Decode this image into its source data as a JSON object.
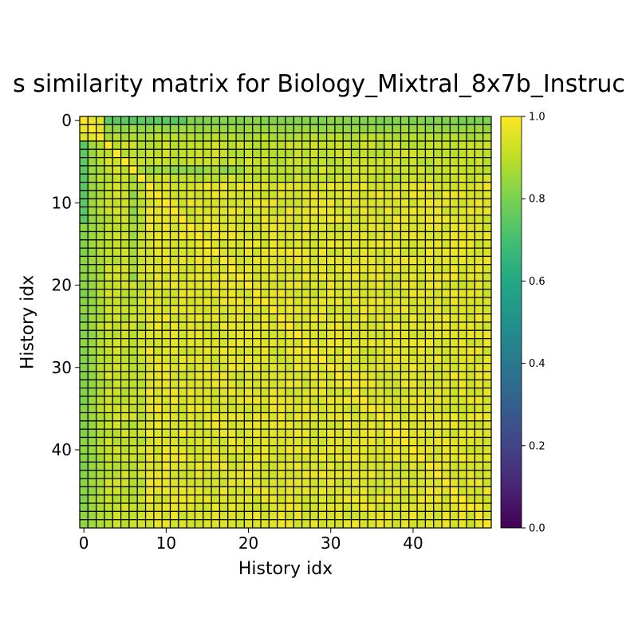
{
  "chart_data": {
    "type": "heatmap",
    "title": "s similarity matrix for Biology_Mixtral_8x7b_Instruc",
    "xlabel": "History idx",
    "ylabel": "History idx",
    "n": 50,
    "x_ticks": [
      "0",
      "10",
      "20",
      "30",
      "40"
    ],
    "y_ticks": [
      "0",
      "10",
      "20",
      "30",
      "40"
    ],
    "colorbar": {
      "range": [
        0.0,
        1.0
      ],
      "ticks": [
        "0.0",
        "0.2",
        "0.4",
        "0.6",
        "0.8",
        "1.0"
      ],
      "colormap": "viridis"
    },
    "values_approx": {
      "diagonal": 1.0,
      "row0_col1": 0.97,
      "row0_col2": 0.96,
      "first_col_early_rows": 0.72,
      "first_cols_typical": 0.82,
      "interior_typical": 0.95
    },
    "grid": "black cell edges"
  }
}
